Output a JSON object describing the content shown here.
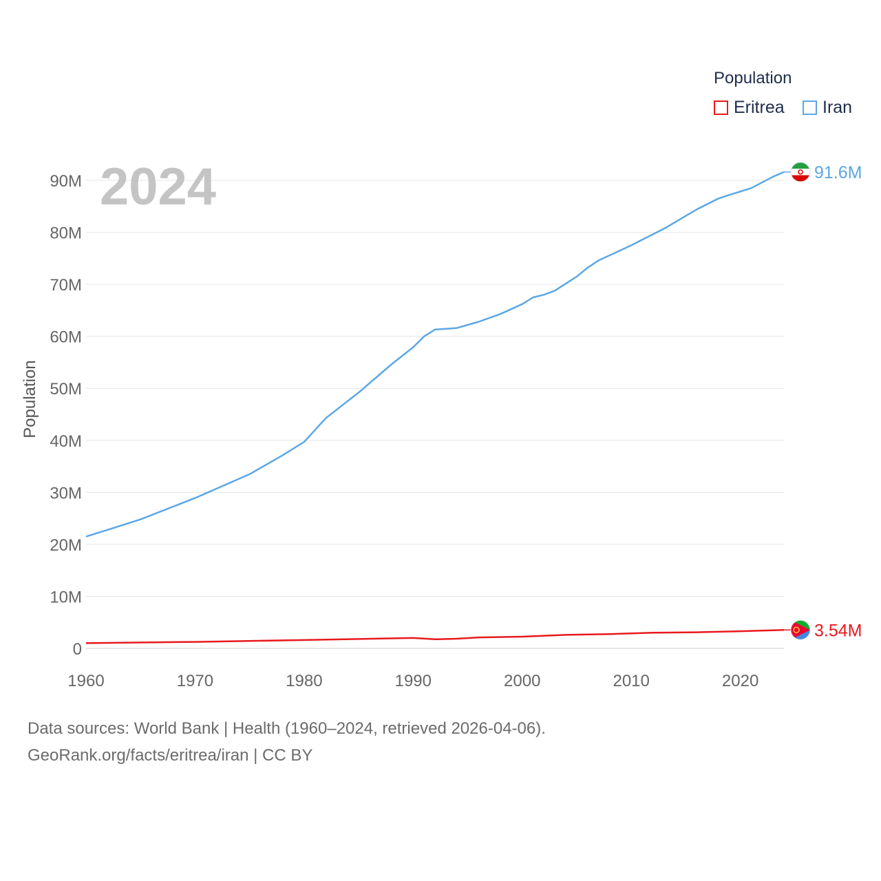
{
  "chart_data": {
    "type": "line",
    "year_label": "2024",
    "ylabel": "Population",
    "legend_title": "Population",
    "ylim": [
      0,
      95000000
    ],
    "xlim": [
      1960,
      2024
    ],
    "y_ticks": [
      {
        "value": 0,
        "label": "0"
      },
      {
        "value": 10000000,
        "label": "10M"
      },
      {
        "value": 20000000,
        "label": "20M"
      },
      {
        "value": 30000000,
        "label": "30M"
      },
      {
        "value": 40000000,
        "label": "40M"
      },
      {
        "value": 50000000,
        "label": "50M"
      },
      {
        "value": 60000000,
        "label": "60M"
      },
      {
        "value": 70000000,
        "label": "70M"
      },
      {
        "value": 80000000,
        "label": "80M"
      },
      {
        "value": 90000000,
        "label": "90M"
      }
    ],
    "x_ticks": [
      {
        "value": 1960,
        "label": "1960"
      },
      {
        "value": 1970,
        "label": "1970"
      },
      {
        "value": 1980,
        "label": "1980"
      },
      {
        "value": 1990,
        "label": "1990"
      },
      {
        "value": 2000,
        "label": "2000"
      },
      {
        "value": 2010,
        "label": "2010"
      },
      {
        "value": 2020,
        "label": "2020"
      }
    ],
    "series": [
      {
        "name": "Eritrea",
        "color": "#e8191c",
        "end_label": "3.54M",
        "flag_icon": "eritrea-flag-icon",
        "points": [
          [
            1960,
            1000000
          ],
          [
            1970,
            1250000
          ],
          [
            1980,
            1600000
          ],
          [
            1990,
            2000000
          ],
          [
            1992,
            1750000
          ],
          [
            1994,
            1850000
          ],
          [
            1996,
            2100000
          ],
          [
            2000,
            2250000
          ],
          [
            2004,
            2600000
          ],
          [
            2008,
            2750000
          ],
          [
            2012,
            3000000
          ],
          [
            2016,
            3100000
          ],
          [
            2020,
            3300000
          ],
          [
            2024,
            3540000
          ]
        ]
      },
      {
        "name": "Iran",
        "color": "#5ba7e6",
        "end_label": "91.6M",
        "flag_icon": "iran-flag-icon",
        "points": [
          [
            1960,
            21500000
          ],
          [
            1962,
            22800000
          ],
          [
            1965,
            24800000
          ],
          [
            1970,
            28900000
          ],
          [
            1975,
            33500000
          ],
          [
            1978,
            37100000
          ],
          [
            1980,
            39700000
          ],
          [
            1982,
            44300000
          ],
          [
            1985,
            49200000
          ],
          [
            1988,
            54600000
          ],
          [
            1990,
            57900000
          ],
          [
            1991,
            60000000
          ],
          [
            1992,
            61300000
          ],
          [
            1994,
            61600000
          ],
          [
            1996,
            62800000
          ],
          [
            1998,
            64300000
          ],
          [
            2000,
            66200000
          ],
          [
            2001,
            67500000
          ],
          [
            2002,
            68000000
          ],
          [
            2003,
            68800000
          ],
          [
            2005,
            71500000
          ],
          [
            2006,
            73200000
          ],
          [
            2007,
            74600000
          ],
          [
            2010,
            77500000
          ],
          [
            2013,
            80700000
          ],
          [
            2016,
            84400000
          ],
          [
            2018,
            86500000
          ],
          [
            2019,
            87200000
          ],
          [
            2021,
            88500000
          ],
          [
            2023,
            90700000
          ],
          [
            2024,
            91600000
          ]
        ]
      }
    ]
  },
  "source": {
    "line1": "Data sources: World Bank | Health (1960–2024, retrieved 2026-04-06).",
    "line2": "GeoRank.org/facts/eritrea/iran | CC BY"
  }
}
